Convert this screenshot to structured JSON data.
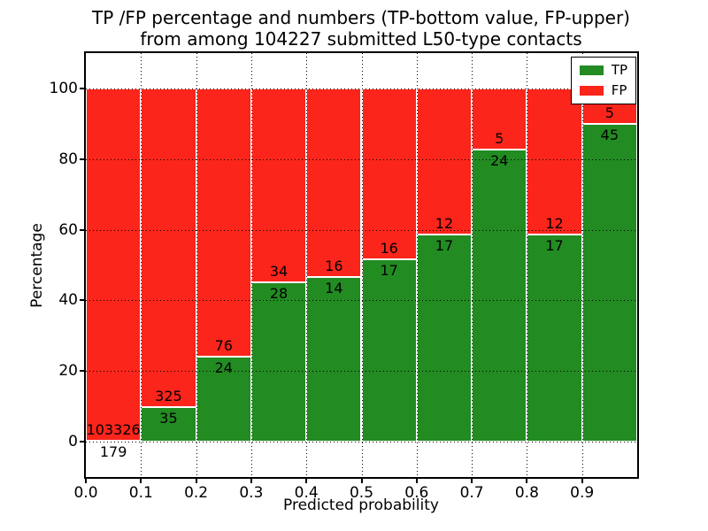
{
  "chart_data": {
    "type": "bar",
    "stacked": true,
    "orientation": "vertical",
    "normalized": "each bin stacked to 100 percent",
    "title_lines": [
      "TP /FP percentage and numbers (TP-bottom value, FP-upper)",
      "from among 104227 submitted L50-type contacts"
    ],
    "xlabel": "Predicted probability",
    "ylabel": "Percentage",
    "total_contacts": 104227,
    "bin_width": 0.1,
    "x_bin_starts": [
      0.0,
      0.1,
      0.2,
      0.3,
      0.4,
      0.5,
      0.6,
      0.7,
      0.8,
      0.9
    ],
    "x_tick_labels": [
      "0.0",
      "0.1",
      "0.2",
      "0.3",
      "0.4",
      "0.5",
      "0.6",
      "0.7",
      "0.8",
      "0.9"
    ],
    "y_tick_labels": [
      "0",
      "20",
      "40",
      "60",
      "80",
      "100"
    ],
    "y_tick_values": [
      0,
      20,
      40,
      60,
      80,
      100
    ],
    "xlim": [
      0.0,
      1.0
    ],
    "ylim": [
      -10,
      110
    ],
    "grid": "dotted black, horizontal and vertical",
    "legend_position": "upper right",
    "series": [
      {
        "name": "TP",
        "color": "#228b22",
        "counts": [
          179,
          35,
          24,
          28,
          14,
          17,
          17,
          24,
          17,
          45
        ],
        "percent_of_bin": [
          0.17,
          9.72,
          24.0,
          45.16,
          46.67,
          51.52,
          58.62,
          82.76,
          58.62,
          90.0
        ]
      },
      {
        "name": "FP",
        "color": "#fb251b",
        "counts": [
          103326,
          325,
          76,
          34,
          16,
          16,
          12,
          5,
          12,
          5
        ],
        "percent_of_bin": [
          99.83,
          90.28,
          76.0,
          54.84,
          53.33,
          48.48,
          41.38,
          17.24,
          41.38,
          10.0
        ]
      }
    ],
    "bar_edge_color": "#ffffff",
    "axes_color": "#000000",
    "background_color": "#ffffff"
  }
}
